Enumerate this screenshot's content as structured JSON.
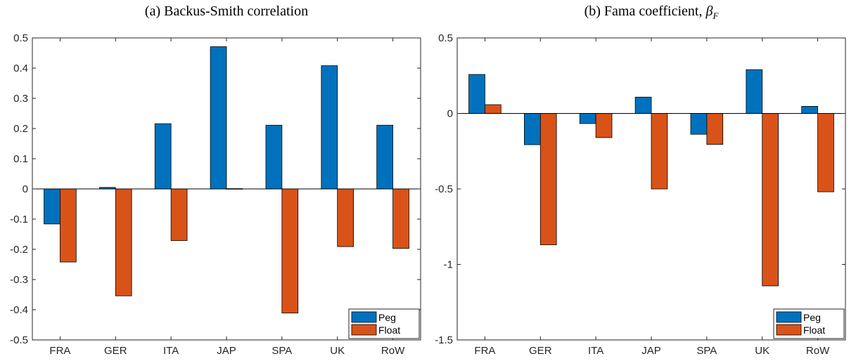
{
  "chart_data": [
    {
      "type": "bar",
      "title": "(a) Backus-Smith correlation",
      "categories": [
        "FRA",
        "GER",
        "ITA",
        "JAP",
        "SPA",
        "UK",
        "RoW"
      ],
      "ylim": [
        -0.5,
        0.5
      ],
      "yticks": [
        -0.5,
        -0.4,
        -0.3,
        -0.2,
        -0.1,
        0,
        0.1,
        0.2,
        0.3,
        0.4,
        0.5
      ],
      "ytick_labels": [
        "-0.5",
        "-0.4",
        "-0.3",
        "-0.2",
        "-0.1",
        "0",
        "0.1",
        "0.2",
        "0.3",
        "0.4",
        "0.5"
      ],
      "grid": false,
      "legend_position": "bottom-right",
      "series": [
        {
          "name": "Peg",
          "color": "#0072BD",
          "values": [
            -0.116,
            0.005,
            0.216,
            0.471,
            0.211,
            0.408,
            0.211
          ]
        },
        {
          "name": "Float",
          "color": "#D95319",
          "values": [
            -0.242,
            -0.354,
            -0.171,
            0.001,
            -0.411,
            -0.191,
            -0.197
          ]
        }
      ]
    },
    {
      "type": "bar",
      "title": "(b) Fama coefficient, ",
      "title_math_symbol": "β",
      "title_math_sub": "F",
      "categories": [
        "FRA",
        "GER",
        "ITA",
        "JAP",
        "SPA",
        "UK",
        "RoW"
      ],
      "ylim": [
        -1.5,
        0.5
      ],
      "yticks": [
        -1.5,
        -1,
        -0.5,
        0,
        0.5
      ],
      "ytick_labels": [
        "-1.5",
        "-1",
        "-0.5",
        "0",
        "0.5"
      ],
      "grid": false,
      "legend_position": "bottom-right",
      "series": [
        {
          "name": "Peg",
          "color": "#0072BD",
          "values": [
            0.258,
            -0.207,
            -0.067,
            0.108,
            -0.138,
            0.29,
            0.047
          ]
        },
        {
          "name": "Float",
          "color": "#D95319",
          "values": [
            0.058,
            -0.87,
            -0.16,
            -0.5,
            -0.205,
            -1.142,
            -0.519
          ]
        }
      ]
    }
  ]
}
